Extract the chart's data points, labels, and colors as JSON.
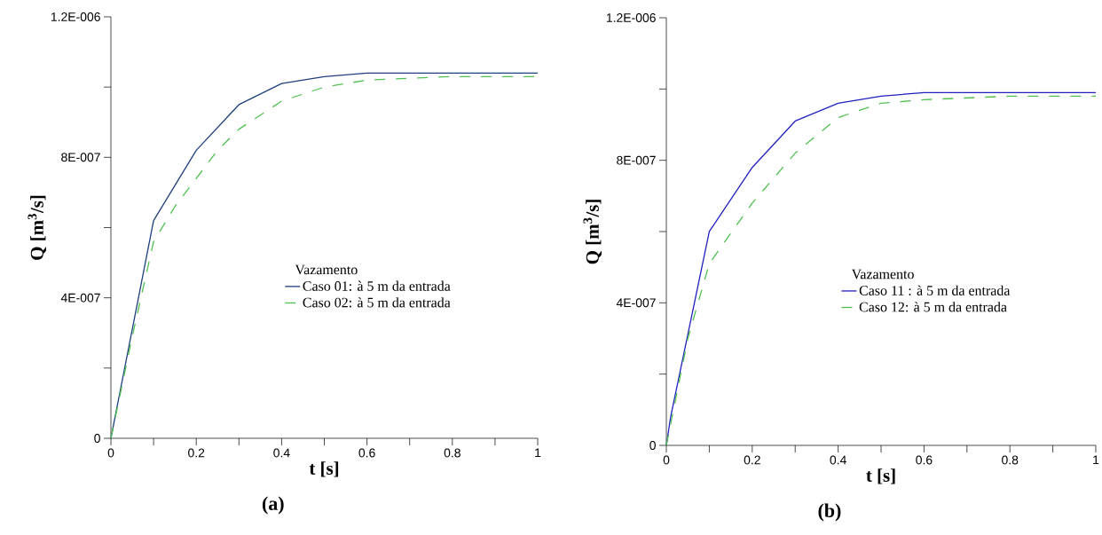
{
  "chart_data": [
    {
      "type": "line",
      "xlabel": "t [s]",
      "ylabel": "Q [m$^{3}$/s]",
      "legend_title": "Vazamento",
      "legend": "right",
      "annotations": [
        "(a)"
      ],
      "xlim": [
        0,
        1
      ],
      "ylim": [
        0,
        1.2e-06
      ],
      "xticks": [
        0,
        {
          "value": 0.1,
          "label": null
        },
        0.2,
        {
          "value": 0.3,
          "label": null
        },
        0.4,
        {
          "value": 0.5,
          "label": null
        },
        0.6,
        {
          "value": 0.7,
          "label": null
        },
        0.8,
        {
          "value": 0.9,
          "label": null
        },
        1
      ],
      "yticks": [
        0,
        {
          "value": 2e-07,
          "label": null
        },
        {
          "value": 4e-07,
          "label": "4E-007"
        },
        {
          "value": 6e-07,
          "label": null
        },
        {
          "value": 8e-07,
          "label": "8E-007"
        },
        {
          "value": 1e-06,
          "label": null
        },
        {
          "value": 1.2e-06,
          "label": "1.2E-006"
        }
      ],
      "series": [
        {
          "name": "Caso 01: à 5 m da entrada",
          "color": "#1f3f7f",
          "line_style": "solid",
          "x": [
            0,
            0.1,
            0.2,
            0.3,
            0.4,
            0.5,
            0.6,
            1
          ],
          "values": [
            0,
            6.2e-07,
            8.2e-07,
            9.5e-07,
            1.01e-06,
            1.03e-06,
            1.04e-06,
            1.04e-06
          ]
        },
        {
          "name": "Caso 02: à 5 m da entrada",
          "color": "#4fc04f",
          "line_style": "dashed",
          "x": [
            0,
            0.05,
            0.1,
            0.15,
            0.2,
            0.25,
            0.3,
            0.4,
            0.5,
            0.6,
            0.8,
            1
          ],
          "values": [
            0,
            2.9e-07,
            5.6e-07,
            6.6e-07,
            7.4e-07,
            8.2e-07,
            8.8e-07,
            9.6e-07,
            1e-06,
            1.02e-06,
            1.03e-06,
            1.03e-06
          ]
        }
      ]
    },
    {
      "type": "line",
      "xlabel": "t [s]",
      "ylabel": "Q [m$^{3}$/s]",
      "legend_title": "Vazamento",
      "legend": "right",
      "annotations": [
        "(b)"
      ],
      "xlim": [
        0,
        1
      ],
      "ylim": [
        0,
        1.2e-06
      ],
      "xticks": [
        0,
        {
          "value": 0.1,
          "label": null
        },
        0.2,
        {
          "value": 0.3,
          "label": null
        },
        0.4,
        {
          "value": 0.5,
          "label": null
        },
        0.6,
        {
          "value": 0.7,
          "label": null
        },
        0.8,
        {
          "value": 0.9,
          "label": null
        },
        1
      ],
      "yticks": [
        0,
        {
          "value": 2e-07,
          "label": null
        },
        {
          "value": 4e-07,
          "label": "4E-007"
        },
        {
          "value": 6e-07,
          "label": null
        },
        {
          "value": 8e-07,
          "label": "8E-007"
        },
        {
          "value": 1e-06,
          "label": null
        },
        {
          "value": 1.2e-06,
          "label": "1.2E-006"
        }
      ],
      "series": [
        {
          "name": "Caso 11 : à 5 m da entrada",
          "color": "#2020c0",
          "line_style": "solid",
          "x": [
            0,
            0.01,
            0.1,
            0.2,
            0.3,
            0.4,
            0.5,
            0.6,
            1
          ],
          "values": [
            0,
            8e-08,
            6e-07,
            7.8e-07,
            9.1e-07,
            9.6e-07,
            9.8e-07,
            9.9e-07,
            9.9e-07
          ]
        },
        {
          "name": "Caso 12: à 5 m da entrada",
          "color": "#4fc04f",
          "line_style": "dashed",
          "x": [
            0,
            0.05,
            0.1,
            0.2,
            0.3,
            0.4,
            0.5,
            0.6,
            0.8,
            1
          ],
          "values": [
            0,
            3e-07,
            5.1e-07,
            6.8e-07,
            8.2e-07,
            9.2e-07,
            9.6e-07,
            9.7e-07,
            9.8e-07,
            9.8e-07
          ]
        }
      ]
    }
  ]
}
